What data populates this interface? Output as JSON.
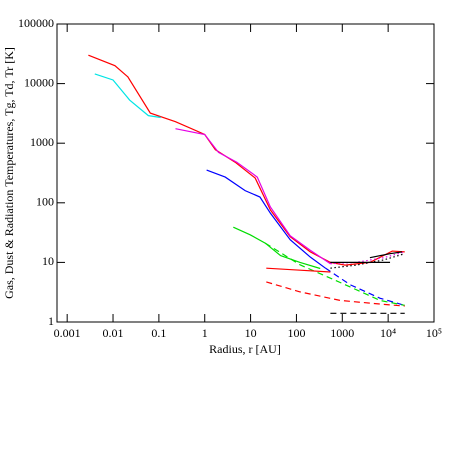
{
  "chart_data": {
    "type": "line",
    "x_label": "Radius, r [AU]",
    "y_label": "Gas, Dust & Radiation Temperatures, Tg, Td, Tr [K]",
    "log_x": true,
    "log_y": true,
    "xlim": [
      0.0006,
      100000
    ],
    "ylim": [
      1,
      100000
    ],
    "xticks": [
      0.001,
      0.01,
      0.1,
      1,
      10,
      100,
      1000,
      {
        "value": 10000,
        "label": "10⁴"
      },
      {
        "value": 100000,
        "label": "10⁵"
      }
    ],
    "yticks": [
      1,
      10,
      100,
      1000,
      10000,
      100000
    ],
    "series": [
      {
        "color": "#ff0000",
        "style": "solid",
        "x": [
          0.0029,
          0.011,
          0.021,
          0.065,
          0.23,
          1,
          1.7,
          4.6,
          12.6,
          27,
          73,
          200,
          550,
          1150,
          4000,
          12300,
          23000
        ],
        "values": [
          30000,
          20000,
          13000,
          3200,
          2300,
          1400,
          780,
          480,
          260,
          76,
          27,
          15,
          10,
          9,
          10,
          15.5,
          15
        ]
      },
      {
        "color": "#00e5e5",
        "style": "solid",
        "x": [
          0.004,
          0.01,
          0.023,
          0.059,
          0.11
        ],
        "values": [
          14500,
          11500,
          5300,
          2900,
          2700
        ]
      },
      {
        "color": "#e500e5",
        "style": "solid",
        "x": [
          0.23,
          1,
          2,
          5,
          14,
          27,
          73,
          200,
          550
        ],
        "values": [
          1750,
          1400,
          700,
          480,
          270,
          85,
          28,
          16,
          9.5
        ]
      },
      {
        "color": "#e500e5",
        "style": "dotted",
        "x": [
          550,
          2000,
          8000,
          23000
        ],
        "values": [
          9.5,
          10,
          12,
          15
        ]
      },
      {
        "color": "#0000ff",
        "style": "solid",
        "x": [
          1.1,
          2.8,
          7.6,
          16,
          27,
          73,
          200,
          430
        ],
        "values": [
          355,
          270,
          160,
          125,
          67,
          24,
          12.3,
          8
        ]
      },
      {
        "color": "#0000ff",
        "style": "dashed",
        "x": [
          430,
          1500,
          6700,
          23000
        ],
        "values": [
          8,
          4.2,
          2.5,
          1.9
        ]
      },
      {
        "color": "#00dd00",
        "style": "solid",
        "x": [
          4.2,
          9.8,
          21,
          45,
          120,
          330
        ],
        "values": [
          39,
          29,
          21,
          13,
          10,
          7.9
        ]
      },
      {
        "color": "#00dd00",
        "style": "dashed",
        "x": [
          21,
          120,
          960,
          6700,
          23000
        ],
        "values": [
          21,
          9.1,
          4.5,
          2.3,
          1.9
        ]
      },
      {
        "color": "#ff0000",
        "style": "solid",
        "x": [
          22,
          120,
          550
        ],
        "values": [
          8,
          7.4,
          6.9
        ]
      },
      {
        "color": "#ff0000",
        "style": "dashed",
        "x": [
          22,
          120,
          900,
          6700,
          23000
        ],
        "values": [
          4.7,
          3.2,
          2.3,
          2.0,
          1.85
        ]
      },
      {
        "color": "#000000",
        "style": "solid",
        "x": [
          550,
          11000
        ],
        "values": [
          10,
          10
        ]
      },
      {
        "color": "#000000",
        "style": "solid",
        "x": [
          4000,
          11000,
          20000
        ],
        "values": [
          12,
          14,
          15
        ]
      },
      {
        "color": "#000000",
        "style": "dotted",
        "x": [
          550,
          2000,
          8000,
          23000
        ],
        "values": [
          8,
          9,
          11,
          14
        ]
      },
      {
        "color": "#000000",
        "style": "dashed",
        "x": [
          550,
          23000
        ],
        "values": [
          1.4,
          1.4
        ]
      }
    ]
  }
}
